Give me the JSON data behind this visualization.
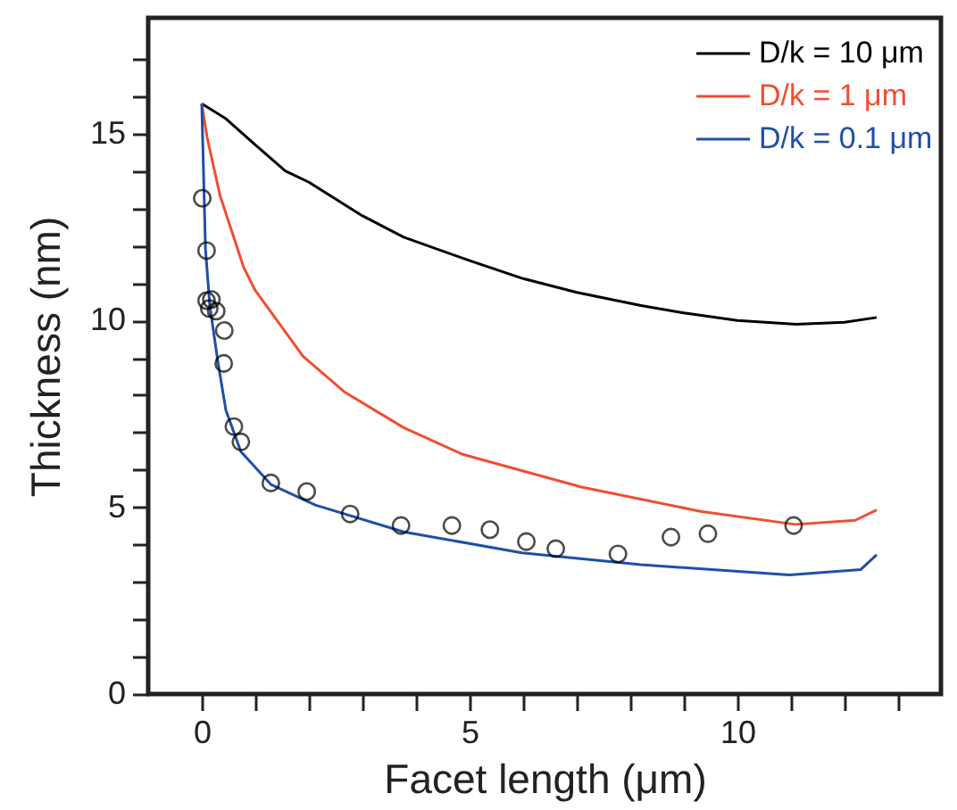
{
  "chart_data": {
    "type": "line",
    "xlabel": "Facet length (μm)",
    "ylabel": "Thickness (nm)",
    "xlim": [
      -1,
      13.8
    ],
    "ylim": [
      0,
      18.1
    ],
    "xticks": [
      0,
      {
        "value": 1,
        "label": null
      },
      {
        "value": 2,
        "label": null
      },
      {
        "value": 3,
        "label": null
      },
      {
        "value": 4,
        "label": null
      },
      5,
      {
        "value": 6,
        "label": null
      },
      {
        "value": 7,
        "label": null
      },
      {
        "value": 8,
        "label": null
      },
      {
        "value": 9,
        "label": null
      },
      10,
      {
        "value": 11,
        "label": null
      },
      {
        "value": 12,
        "label": null
      },
      {
        "value": 13,
        "label": null
      }
    ],
    "yticks": [
      0,
      {
        "value": 1,
        "label": null
      },
      {
        "value": 2,
        "label": null
      },
      {
        "value": 3,
        "label": null
      },
      {
        "value": 4,
        "label": null
      },
      5,
      {
        "value": 6,
        "label": null
      },
      {
        "value": 7,
        "label": null
      },
      {
        "value": 8,
        "label": null
      },
      {
        "value": 9,
        "label": null
      },
      10,
      {
        "value": 11,
        "label": null
      },
      {
        "value": 12,
        "label": null
      },
      {
        "value": 13,
        "label": null
      },
      {
        "value": 14,
        "label": null
      },
      15,
      {
        "value": 16,
        "label": null
      },
      {
        "value": 17,
        "label": null
      }
    ],
    "legend": "top right",
    "grid": false,
    "series": [
      {
        "name": "D/k = 10 μm",
        "color": "#000000",
        "marker": "none",
        "x": [
          0,
          0.45,
          1,
          1.56,
          2,
          3,
          3.77,
          5,
          6,
          7,
          8.2,
          9,
          10,
          11.1,
          12,
          12.6
        ],
        "values": [
          15.8,
          15.4,
          14.7,
          14.0,
          13.7,
          12.8,
          12.23,
          11.6,
          11.12,
          10.75,
          10.4,
          10.2,
          10.0,
          9.9,
          9.95,
          10.08
        ]
      },
      {
        "name": "D/k = 1 μm",
        "color": "#f04e30",
        "marker": "none",
        "x": [
          0,
          0.1,
          0.34,
          0.78,
          1,
          1.89,
          2.66,
          3.77,
          4.88,
          7.09,
          9.31,
          11.08,
          12.2,
          12.6
        ],
        "values": [
          15.8,
          14.9,
          13.35,
          11.43,
          10.8,
          9.04,
          8.09,
          7.13,
          6.41,
          5.54,
          4.89,
          4.54,
          4.65,
          4.93
        ]
      },
      {
        "name": "D/k = 0.1 μm",
        "color": "#1f4fa8",
        "marker": "none",
        "x": [
          0,
          0.07,
          0.15,
          0.3,
          0.45,
          0.73,
          1.29,
          2.12,
          3.77,
          5.98,
          8.2,
          10.97,
          12.3,
          12.6
        ],
        "values": [
          15.8,
          11.9,
          10.4,
          8.9,
          7.6,
          6.49,
          5.61,
          5.06,
          4.34,
          3.78,
          3.46,
          3.19,
          3.33,
          3.73
        ]
      },
      {
        "type": "scatter",
        "color": "#000000",
        "marker": "circle",
        "x": [
          0.01,
          0.09,
          0.09,
          0.18,
          0.14,
          0.27,
          0.42,
          0.41,
          0.6,
          0.73,
          1.29,
          1.96,
          2.77,
          3.72,
          4.67,
          5.38,
          6.06,
          6.61,
          7.77,
          8.76,
          9.45,
          11.05
        ],
        "values": [
          13.27,
          11.87,
          10.53,
          10.56,
          10.32,
          10.25,
          9.73,
          8.85,
          7.16,
          6.75,
          5.65,
          5.42,
          4.82,
          4.51,
          4.51,
          4.4,
          4.08,
          3.89,
          3.75,
          4.2,
          4.29,
          4.51
        ]
      }
    ]
  }
}
